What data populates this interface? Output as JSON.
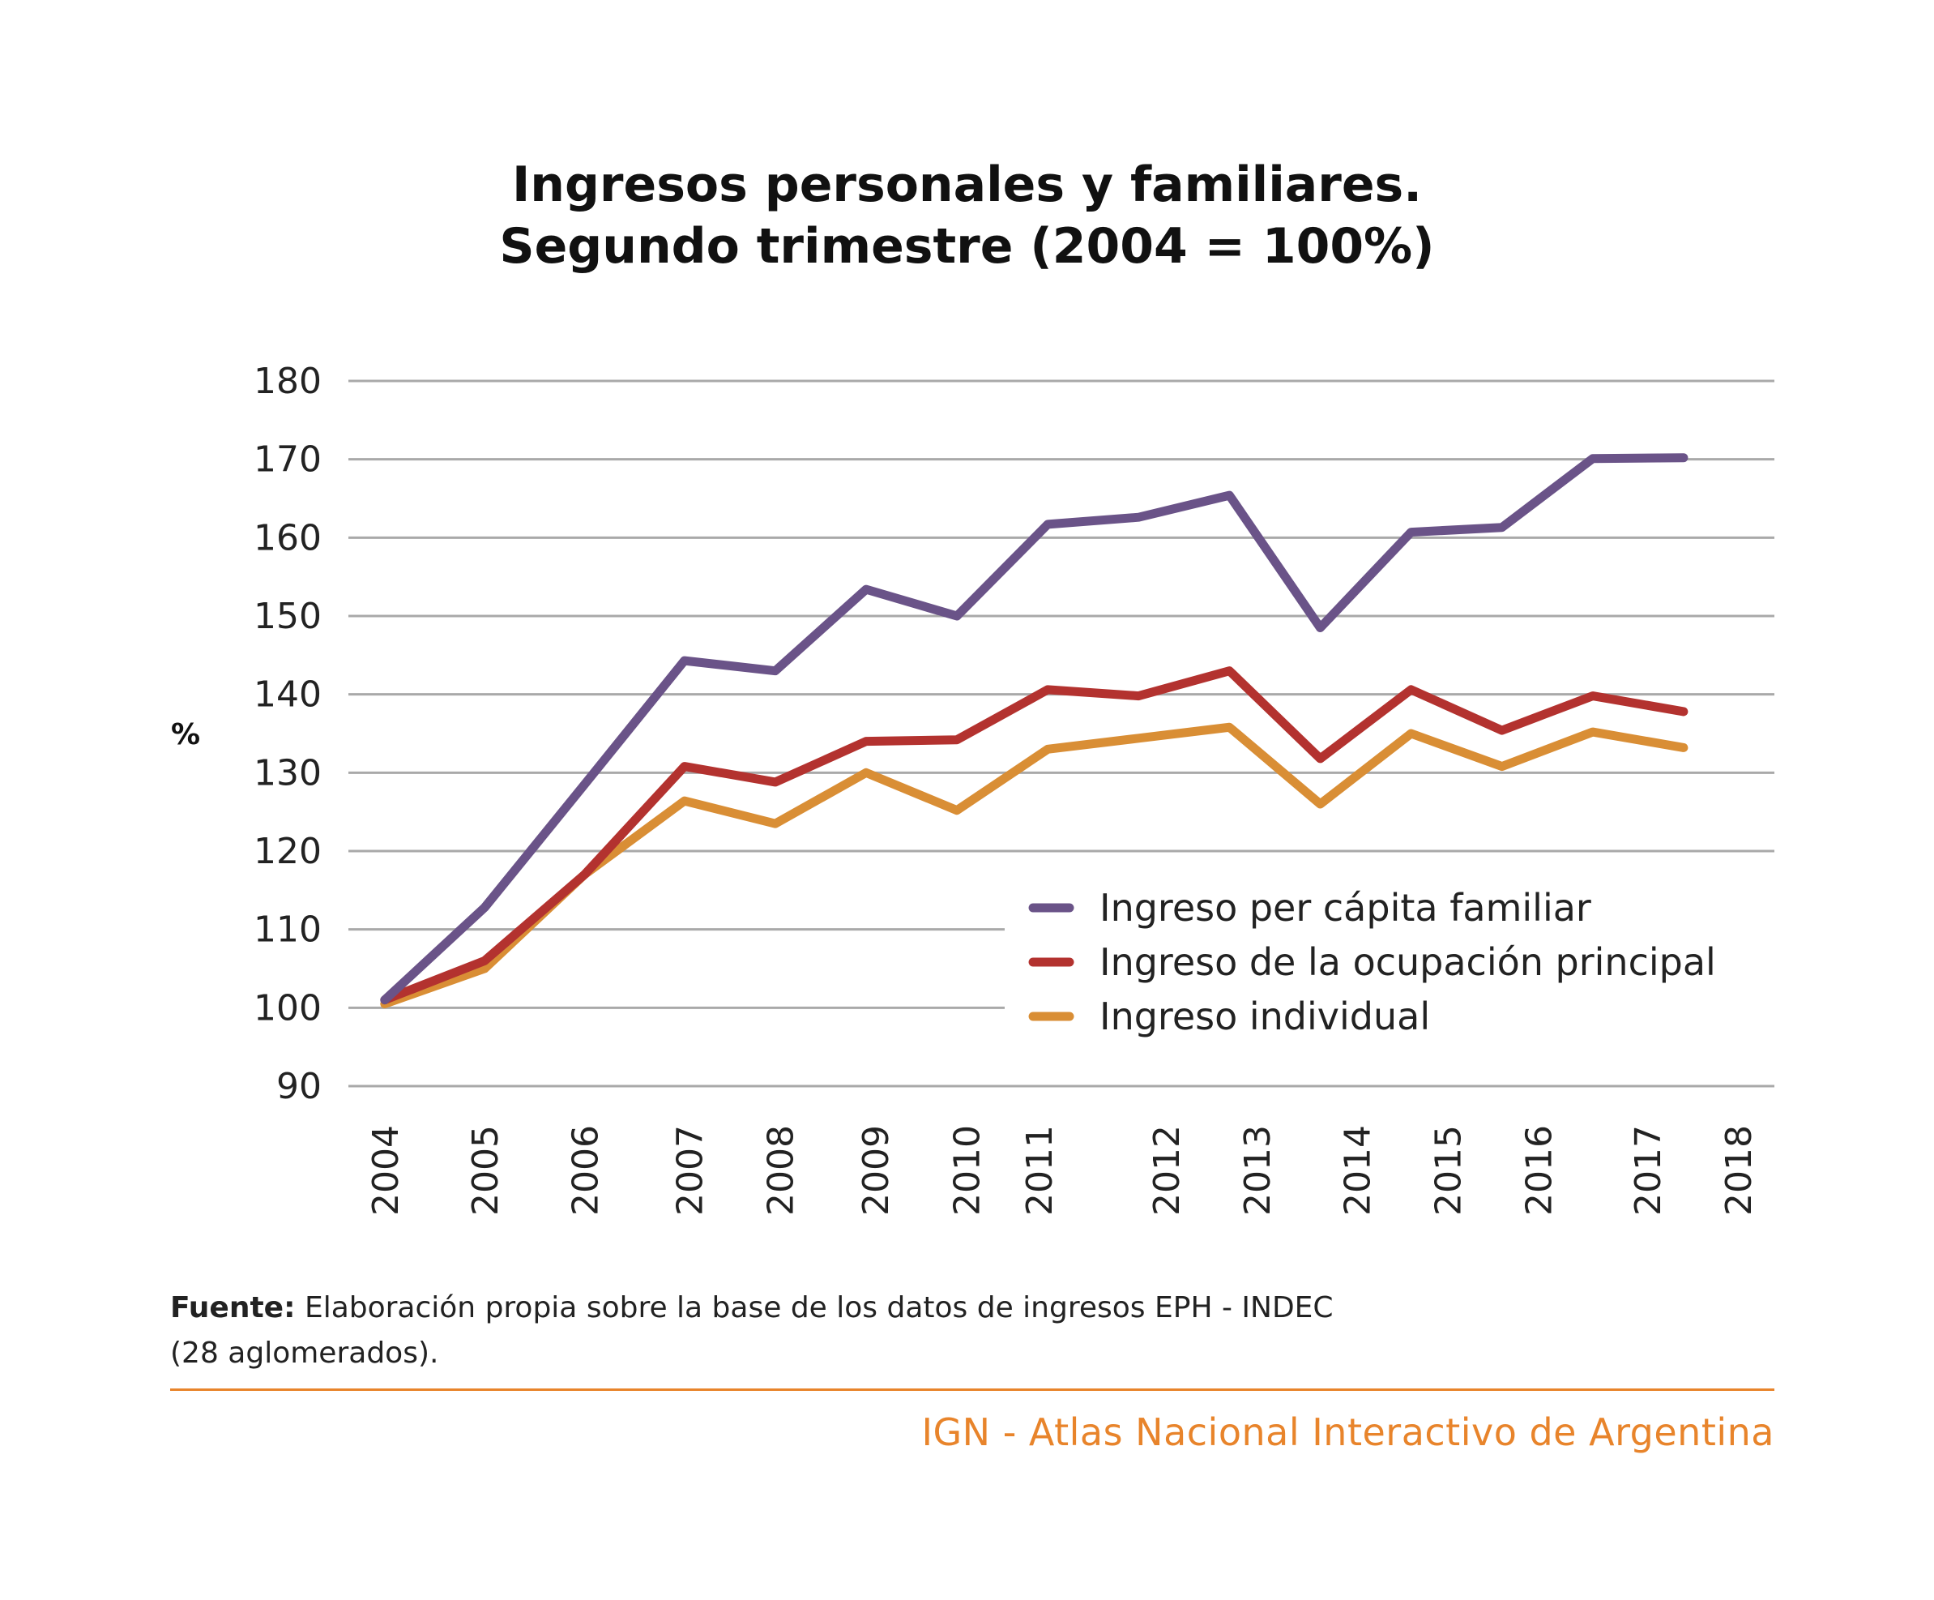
{
  "chart_data": {
    "type": "line",
    "title_lines": [
      "Ingresos personales y familiares.",
      "Segundo trimestre (2004 = 100%)"
    ],
    "ylabel": "%",
    "xlabel": "",
    "ylim": [
      90,
      180
    ],
    "yticks": [
      90,
      100,
      110,
      120,
      130,
      140,
      150,
      160,
      170,
      180
    ],
    "grid": true,
    "legend_position": "bottom-right",
    "x_tick_labels": [
      {
        "label": "2004",
        "x": 2004.0
      },
      {
        "label": "2005",
        "x": 2005.1
      },
      {
        "label": "2006",
        "x": 2006.2
      },
      {
        "label": "2007",
        "x": 2007.35
      },
      {
        "label": "2008",
        "x": 2008.35
      },
      {
        "label": "2009",
        "x": 2009.4
      },
      {
        "label": "2010",
        "x": 2010.4
      },
      {
        "label": "2011",
        "x": 2011.2
      },
      {
        "label": "2012",
        "x": 2012.6
      },
      {
        "label": "2013",
        "x": 2013.6
      },
      {
        "label": "2014",
        "x": 2014.7
      },
      {
        "label": "2015",
        "x": 2015.7
      },
      {
        "label": "2016",
        "x": 2016.7
      },
      {
        "label": "2017",
        "x": 2017.9
      },
      {
        "label": "2018",
        "x": 2018.9
      }
    ],
    "x": [
      2004.0,
      2005.1,
      2006.2,
      2007.3,
      2008.3,
      2009.3,
      2010.3,
      2011.3,
      2012.3,
      2013.3,
      2014.3,
      2015.3,
      2016.3,
      2017.3,
      2018.3
    ],
    "series": [
      {
        "name": "Ingreso per cápita familiar",
        "color": "#6a5388",
        "values": [
          101,
          112.8,
          128.5,
          144.3,
          143,
          153.4,
          150,
          161.7,
          162.6,
          165.4,
          148.5,
          160.7,
          161.3,
          170.1,
          170.2
        ]
      },
      {
        "name": "Ingreso de la ocupación principal",
        "color": "#b3322f",
        "values": [
          101,
          106,
          117,
          130.8,
          128.8,
          134,
          134.2,
          140.6,
          139.8,
          143,
          131.8,
          140.6,
          135.4,
          139.8,
          137.8
        ]
      },
      {
        "name": "Ingreso individual",
        "color": "#d98e35",
        "values": [
          100.5,
          105,
          117,
          126.4,
          123.5,
          130,
          125.2,
          133,
          134.4,
          135.8,
          126,
          135,
          130.8,
          135.2,
          133.2
        ]
      }
    ]
  },
  "footer": {
    "source_label": "Fuente:",
    "source_text_line1": " Elaboración propia sobre la base de los datos de ingresos EPH - INDEC",
    "source_text_line2": "(28 aglomerados).",
    "credit": "IGN - Atlas Nacional Interactivo de Argentina"
  }
}
